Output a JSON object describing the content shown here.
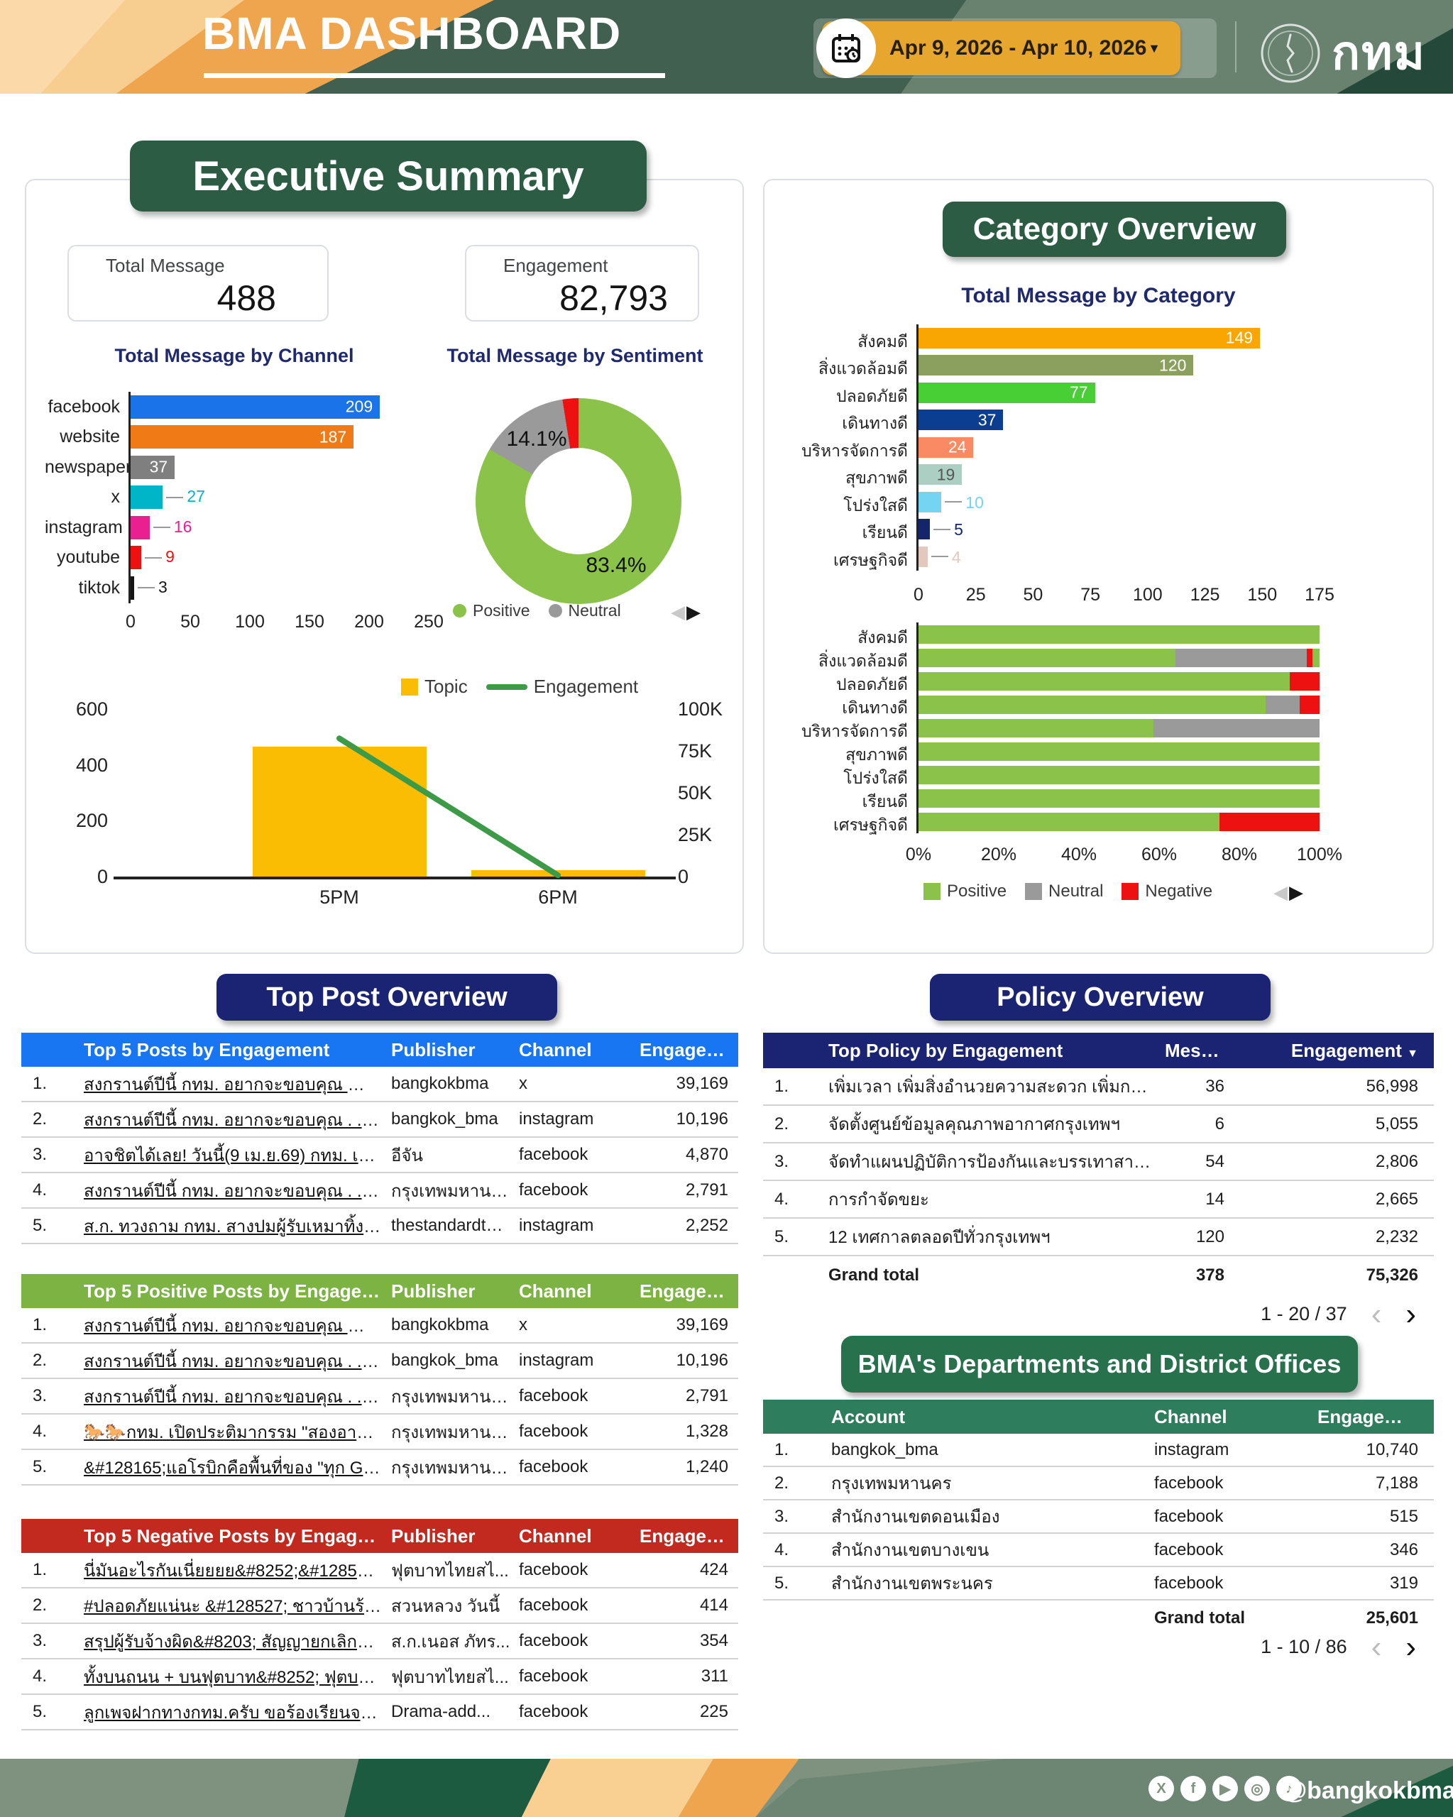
{
  "header": {
    "title": "BMA DASHBOARD",
    "date_range": "Apr 9, 2026 - Apr 10, 2026",
    "logo_text": "กทม"
  },
  "glyphs": {
    "caret": "▼",
    "arrow_left": "◀",
    "arrow_right": "▶",
    "chev_left": "‹",
    "chev_right": "›"
  },
  "sections": {
    "exec": "Executive Summary",
    "category": "Category Overview",
    "top_post": "Top Post Overview",
    "policy": "Policy Overview",
    "departments": "BMA's Departments and District Offices"
  },
  "stats": [
    {
      "label": "Total Message",
      "value": "488"
    },
    {
      "label": "Engagement",
      "value": "82,793"
    }
  ],
  "chart_data": [
    {
      "id": "channel",
      "type": "bar",
      "title": "Total Message by Channel",
      "categories": [
        "facebook",
        "website",
        "newspaper",
        "x",
        "instagram",
        "youtube",
        "tiktok"
      ],
      "values": [
        209,
        187,
        37,
        27,
        16,
        9,
        3
      ],
      "colors": [
        "#1a73e8",
        "#f07b16",
        "#7f7f7f",
        "#00b5c8",
        "#ea1f90",
        "#ee1111",
        "#161616"
      ],
      "xlim": [
        0,
        250
      ],
      "xticks": [
        0,
        50,
        100,
        150,
        200,
        250
      ]
    },
    {
      "id": "sentiment",
      "type": "pie",
      "title": "Total Message by Sentiment",
      "slices": [
        {
          "label": "Positive",
          "pct": 83.4,
          "text": "83.4%",
          "color": "#8bc34a"
        },
        {
          "label": "Neutral",
          "pct": 14.1,
          "text": "14.1%",
          "color": "#9a9a9a"
        },
        {
          "label": "Negative",
          "pct": 2.5,
          "text": "",
          "color": "#ee1111"
        }
      ],
      "legend": [
        "Positive",
        "Neutral"
      ]
    },
    {
      "id": "topic_engagement",
      "type": "combo",
      "categories": [
        "5PM",
        "6PM"
      ],
      "series": [
        {
          "name": "Topic",
          "kind": "bar",
          "axis": "left",
          "color": "#fbbc04",
          "values": [
            465,
            23
          ]
        },
        {
          "name": "Engagement",
          "kind": "line",
          "axis": "right",
          "color": "#3d9a46",
          "values": [
            82500,
            800
          ]
        }
      ],
      "left_axis": {
        "max": 600,
        "ticks": [
          600,
          400,
          200,
          0
        ]
      },
      "right_axis": {
        "max": 100000,
        "ticks": [
          "100K",
          "75K",
          "50K",
          "25K",
          "0"
        ]
      }
    },
    {
      "id": "category",
      "type": "bar",
      "title": "Total Message by Category",
      "categories": [
        "สังคมดี",
        "สิ่งแวดล้อมดี",
        "ปลอดภัยดี",
        "เดินทางดี",
        "บริหารจัดการดี",
        "สุขภาพดี",
        "โปร่งใสดี",
        "เรียนดี",
        "เศรษฐกิจดี"
      ],
      "values": [
        149,
        120,
        77,
        37,
        24,
        19,
        10,
        5,
        4
      ],
      "colors": [
        "#f9a602",
        "#8ba05e",
        "#47cf35",
        "#0b3d91",
        "#f98a64",
        "#abcfc3",
        "#74d4f2",
        "#13266b",
        "#e3c8be"
      ],
      "xlim": [
        0,
        175
      ],
      "xticks": [
        0,
        25,
        50,
        75,
        100,
        125,
        150,
        175
      ]
    },
    {
      "id": "category_sentiment",
      "type": "stacked_bar_percent",
      "categories": [
        "สังคมดี",
        "สิ่งแวดล้อมดี",
        "ปลอดภัยดี",
        "เดินทางดี",
        "บริหารจัดการดี",
        "สุขภาพดี",
        "โปร่งใสดี",
        "เรียนดี",
        "เศรษฐกิจดี"
      ],
      "legend": [
        "Positive",
        "Neutral",
        "Negative"
      ],
      "colors": {
        "Positive": "#8bc34a",
        "Neutral": "#9a9a9a",
        "Negative": "#ee1111"
      },
      "rows": [
        [
          {
            "s": "Positive",
            "pct": 100
          }
        ],
        [
          {
            "s": "Positive",
            "pct": 64
          },
          {
            "s": "Neutral",
            "pct": 32.8
          },
          {
            "s": "Negative",
            "pct": 1.4
          },
          {
            "s": "Positive",
            "pct": 1.8
          }
        ],
        [
          {
            "s": "Positive",
            "pct": 92.5
          },
          {
            "s": "Negative",
            "pct": 7.5
          }
        ],
        [
          {
            "s": "Positive",
            "pct": 86.5
          },
          {
            "s": "Neutral",
            "pct": 8.5
          },
          {
            "s": "Negative",
            "pct": 5
          }
        ],
        [
          {
            "s": "Positive",
            "pct": 58.5
          },
          {
            "s": "Neutral",
            "pct": 41.5
          }
        ],
        [
          {
            "s": "Positive",
            "pct": 100
          }
        ],
        [
          {
            "s": "Positive",
            "pct": 100
          }
        ],
        [
          {
            "s": "Positive",
            "pct": 100
          }
        ],
        [
          {
            "s": "Positive",
            "pct": 75
          },
          {
            "s": "Negative",
            "pct": 25
          }
        ]
      ],
      "xticks": [
        "0%",
        "20%",
        "40%",
        "60%",
        "80%",
        "100%"
      ]
    }
  ],
  "tables": {
    "top_posts": {
      "accent": "#1976f2",
      "columns": [
        "Top 5 Posts by Engagement",
        "Publisher",
        "Channel",
        "Engageme..."
      ],
      "rows": [
        {
          "num": "1.",
          "title": "สงกรานต์ปีนี้ กทม. อยากจะขอบคุณ 🙏 . . 💚 คุณ...",
          "publisher": "bangkokbma",
          "channel": "x",
          "engagement": "39,169"
        },
        {
          "num": "2.",
          "title": "สงกรานต์ปีนี้ กทม. อยากจะขอบคุณ . . คุณลีแทยง ...",
          "publisher": "bangkok_bma",
          "channel": "instagram",
          "engagement": "10,196"
        },
        {
          "num": "3.",
          "title": "อาจชิตได้เลย! วันนี้(9 เม.ย.69) กทม. เตือน ค่าดัช...",
          "publisher": "อีจัน",
          "channel": "facebook",
          "engagement": "4,870"
        },
        {
          "num": "4.",
          "title": "สงกรานต์ปีนี้ กทม. อยากจะขอบคุณ . . คุณลีแทยง ...",
          "publisher": "กรุงเทพมหานคร",
          "channel": "facebook",
          "engagement": "2,791"
        },
        {
          "num": "5.",
          "title": "ส.ก. ทวงถาม กทม. สางปมผู้รับเหมาทิ้งงานตึกเขต...",
          "publisher": "thestandardth....",
          "channel": "instagram",
          "engagement": "2,252"
        }
      ]
    },
    "positive_posts": {
      "accent": "#7cb342",
      "columns": [
        "Top 5 Positive Posts by Engagement",
        "Publisher",
        "Channel",
        "Engagement"
      ],
      "rows": [
        {
          "num": "1.",
          "title": "สงกรานต์ปีนี้ กทม. อยากจะขอบคุณ 🙏 . . 💚 คุณลี...",
          "publisher": "bangkokbma",
          "channel": "x",
          "engagement": "39,169"
        },
        {
          "num": "2.",
          "title": "สงกรานต์ปีนี้ กทม. อยากจะขอบคุณ . . คุณลีแทยง #...",
          "publisher": "bangkok_bma",
          "channel": "instagram",
          "engagement": "10,196"
        },
        {
          "num": "3.",
          "title": "สงกรานต์ปีนี้ กทม. อยากจะขอบคุณ . . คุณลีแทยง #...",
          "publisher": "กรุงเทพมหานคร",
          "channel": "facebook",
          "engagement": "2,791"
        },
        {
          "num": "4.",
          "title": "🐎🐎กทม. เปิดประติมากรรม \"สองอาชา\" (Two St...",
          "publisher": "กรุงเทพมหานคร",
          "channel": "facebook",
          "engagement": "1,328"
        },
        {
          "num": "5.",
          "title": "&#128165;แอโรบิกคือพื้นที่ของ \"ทุก GEN\" เลิกงา...",
          "publisher": "กรุงเทพมหานคร",
          "channel": "facebook",
          "engagement": "1,240"
        }
      ]
    },
    "negative_posts": {
      "accent": "#c22a20",
      "columns": [
        "Top 5 Negative Posts by Engagement",
        "Publisher",
        "Channel",
        "Engagement"
      ],
      "rows": [
        {
          "num": "1.",
          "title": "นี่มันอะไรกันเนี่ยยยย&#8252;&#128561;&#1285...",
          "publisher": "ฟุตบาทไทยสไ...",
          "channel": "facebook",
          "engagement": "424"
        },
        {
          "num": "2.",
          "title": "#ปลอดภัยแน่นะ &#128527; ชาวบ้านร้องผ่านเพจสว...",
          "publisher": "สวนหลวง วันนี้",
          "channel": "facebook",
          "engagement": "414"
        },
        {
          "num": "3.",
          "title": "สรุปผู้รับจ้างผิด&#8203; สัญญายกเลิกได้&#8203; ก...",
          "publisher": "ส.ก.เนอส ภัทร...",
          "channel": "facebook",
          "engagement": "354"
        },
        {
          "num": "4.",
          "title": "ทั้งบนถนน + บนฟุตบาท&#8252; ฟุตบาทนานา&#1...",
          "publisher": "ฟุตบาทไทยสไ...",
          "channel": "facebook",
          "engagement": "311"
        },
        {
          "num": "5.",
          "title": "ลูกเพจฝากทางกทม.ครับ ขอร้องเรียนจา เพจ Drama-a...",
          "publisher": "Drama-add...",
          "channel": "facebook",
          "engagement": "225"
        }
      ]
    },
    "policy": {
      "accent": "#1a2472",
      "columns": [
        "Top Policy by Engagement",
        "Message",
        "Engagement"
      ],
      "rows": [
        {
          "num": "1.",
          "title": "เพิ่มเวลา เพิ่มสิ่งอำนวยความสะดวก เพิ่มการเข้า...",
          "message": "36",
          "engagement": "56,998"
        },
        {
          "num": "2.",
          "title": "จัดตั้งศูนย์ข้อมูลคุณภาพอากาศกรุงเทพฯ",
          "message": "6",
          "engagement": "5,055"
        },
        {
          "num": "3.",
          "title": "จัดทำแผนปฏิบัติการป้องกันและบรรเทาสาธารณ...",
          "message": "54",
          "engagement": "2,806"
        },
        {
          "num": "4.",
          "title": "การกำจัดขยะ",
          "message": "14",
          "engagement": "2,665"
        },
        {
          "num": "5.",
          "title": "12 เทศกาลตลอดปีทั่วกรุงเทพฯ",
          "message": "120",
          "engagement": "2,232"
        }
      ],
      "grand_total": {
        "label": "Grand total",
        "message": "378",
        "engagement": "75,326"
      },
      "pagination": "1 - 20 / 37"
    },
    "departments": {
      "accent": "#2e7d5c",
      "columns": [
        "Account",
        "Channel",
        "Engagement"
      ],
      "rows": [
        {
          "num": "1.",
          "account": "bangkok_bma",
          "channel": "instagram",
          "engagement": "10,740"
        },
        {
          "num": "2.",
          "account": "กรุงเทพมหานคร",
          "channel": "facebook",
          "engagement": "7,188"
        },
        {
          "num": "3.",
          "account": "สำนักงานเขตดอนเมือง",
          "channel": "facebook",
          "engagement": "515"
        },
        {
          "num": "4.",
          "account": "สำนักงานเขตบางเขน",
          "channel": "facebook",
          "engagement": "346"
        },
        {
          "num": "5.",
          "account": "สำนักงานเขตพระนคร",
          "channel": "facebook",
          "engagement": "319"
        }
      ],
      "grand_total": {
        "label": "Grand total",
        "engagement": "25,601"
      },
      "pagination": "1 - 10 / 86"
    }
  },
  "footer": {
    "handle": "@bangkokbma",
    "icons": [
      "x",
      "facebook",
      "youtube",
      "instagram",
      "tiktok"
    ]
  }
}
